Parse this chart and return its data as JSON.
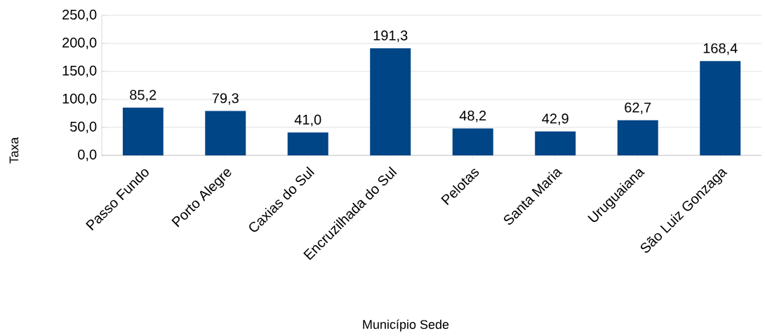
{
  "chart_data": {
    "type": "bar",
    "xlabel": "Município Sede",
    "ylabel": "Taxa",
    "categories": [
      "Passo Fundo",
      "Porto Alegre",
      "Caxias do Sul",
      "Encruzilhada do Sul",
      "Pelotas",
      "Santa Maria",
      "Uruguaiana",
      "São Luiz Gonzaga"
    ],
    "values": [
      85.2,
      79.3,
      41.0,
      191.3,
      48.2,
      42.9,
      62.7,
      168.4
    ],
    "value_labels": [
      "85,2",
      "79,3",
      "41,0",
      "191,3",
      "48,2",
      "42,9",
      "62,7",
      "168,4"
    ],
    "color": "#004586",
    "ylim": [
      0,
      250
    ],
    "yticks": [
      {
        "value": 0,
        "label": "0,0"
      },
      {
        "value": 50,
        "label": "50,0"
      },
      {
        "value": 100,
        "label": "100,0"
      },
      {
        "value": 150,
        "label": "150,0"
      },
      {
        "value": 200,
        "label": "200,0"
      },
      {
        "value": 250,
        "label": "250,0"
      }
    ],
    "grid": "y"
  }
}
